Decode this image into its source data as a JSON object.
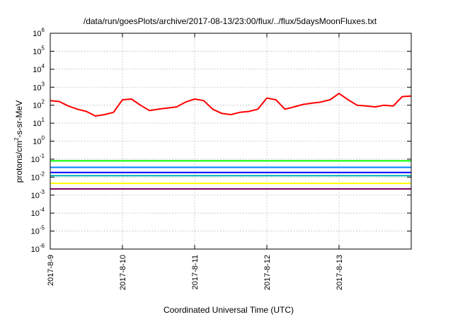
{
  "chart_data": {
    "type": "line",
    "title": "/data/run/goesPlots/archive/2017-08-13/23:00/flux/../flux/5daysMoonFluxes.txt",
    "xlabel": "Coordinated Universal Time (UTC)",
    "ylabel": {
      "pre": "protons/cm",
      "sup": "2",
      "post": "-s-sr-MeV"
    },
    "yscale": "log",
    "ylim": [
      1e-06,
      1000000.0
    ],
    "xlim": [
      "2017-08-09",
      "2017-08-14"
    ],
    "grid": true,
    "x_ticks": [
      "2017-8-9",
      "2017-8-10",
      "2017-8-11",
      "2017-8-12",
      "2017-8-13"
    ],
    "y_ticks": [
      {
        "value": 1e-06,
        "base": "10",
        "exp": "-6"
      },
      {
        "value": 1e-05,
        "base": "10",
        "exp": "-5"
      },
      {
        "value": 0.0001,
        "base": "10",
        "exp": "-4"
      },
      {
        "value": 0.001,
        "base": "10",
        "exp": "-3"
      },
      {
        "value": 0.01,
        "base": "10",
        "exp": "-2"
      },
      {
        "value": 0.1,
        "base": "10",
        "exp": "-1"
      },
      {
        "value": 1.0,
        "base": "10",
        "exp": "0"
      },
      {
        "value": 10.0,
        "base": "10",
        "exp": "1"
      },
      {
        "value": 100.0,
        "base": "10",
        "exp": "2"
      },
      {
        "value": 1000.0,
        "base": "10",
        "exp": "3"
      },
      {
        "value": 10000.0,
        "base": "10",
        "exp": "4"
      },
      {
        "value": 100000.0,
        "base": "10",
        "exp": "5"
      },
      {
        "value": 1000000.0,
        "base": "10",
        "exp": "6"
      }
    ],
    "series": [
      {
        "color": "#ff0000",
        "values": [
          [
            "2017-08-09 00:00",
            180
          ],
          [
            "2017-08-09 03:00",
            160
          ],
          [
            "2017-08-09 06:00",
            90
          ],
          [
            "2017-08-09 09:00",
            60
          ],
          [
            "2017-08-09 12:00",
            45
          ],
          [
            "2017-08-09 15:00",
            25
          ],
          [
            "2017-08-09 18:00",
            30
          ],
          [
            "2017-08-09 21:00",
            40
          ],
          [
            "2017-08-10 00:00",
            200
          ],
          [
            "2017-08-10 03:00",
            220
          ],
          [
            "2017-08-10 06:00",
            100
          ],
          [
            "2017-08-10 09:00",
            50
          ],
          [
            "2017-08-10 12:00",
            60
          ],
          [
            "2017-08-10 15:00",
            70
          ],
          [
            "2017-08-10 18:00",
            80
          ],
          [
            "2017-08-10 21:00",
            150
          ],
          [
            "2017-08-11 00:00",
            220
          ],
          [
            "2017-08-11 03:00",
            180
          ],
          [
            "2017-08-11 06:00",
            60
          ],
          [
            "2017-08-11 09:00",
            35
          ],
          [
            "2017-08-11 12:00",
            30
          ],
          [
            "2017-08-11 15:00",
            40
          ],
          [
            "2017-08-11 18:00",
            45
          ],
          [
            "2017-08-11 21:00",
            60
          ],
          [
            "2017-08-12 00:00",
            250
          ],
          [
            "2017-08-12 03:00",
            200
          ],
          [
            "2017-08-12 06:00",
            60
          ],
          [
            "2017-08-12 09:00",
            80
          ],
          [
            "2017-08-12 12:00",
            110
          ],
          [
            "2017-08-12 15:00",
            130
          ],
          [
            "2017-08-12 18:00",
            150
          ],
          [
            "2017-08-12 21:00",
            200
          ],
          [
            "2017-08-13 00:00",
            450
          ],
          [
            "2017-08-13 03:00",
            200
          ],
          [
            "2017-08-13 06:00",
            100
          ],
          [
            "2017-08-13 09:00",
            90
          ],
          [
            "2017-08-13 12:00",
            80
          ],
          [
            "2017-08-13 15:00",
            100
          ],
          [
            "2017-08-13 18:00",
            90
          ],
          [
            "2017-08-13 21:00",
            300
          ],
          [
            "2017-08-14 00:00",
            320
          ]
        ]
      },
      {
        "color": "#00ff00",
        "values": [
          [
            "2017-08-09 00:00",
            0.08
          ],
          [
            "2017-08-14 00:00",
            0.08
          ]
        ]
      },
      {
        "color": "#00b0b0",
        "values": [
          [
            "2017-08-09 00:00",
            0.012
          ],
          [
            "2017-08-14 00:00",
            0.012
          ]
        ]
      },
      {
        "color": "#0000ff",
        "values": [
          [
            "2017-08-09 00:00",
            0.018
          ],
          [
            "2017-08-14 00:00",
            0.018
          ]
        ]
      },
      {
        "color": "#0080ff",
        "values": [
          [
            "2017-08-09 00:00",
            0.035
          ],
          [
            "2017-08-14 00:00",
            0.035
          ]
        ]
      },
      {
        "color": "#ffff00",
        "values": [
          [
            "2017-08-09 00:00",
            0.0045
          ],
          [
            "2017-08-14 00:00",
            0.0045
          ]
        ]
      },
      {
        "color": "#800060",
        "values": [
          [
            "2017-08-09 00:00",
            0.0022
          ],
          [
            "2017-08-14 00:00",
            0.0022
          ]
        ]
      }
    ]
  }
}
